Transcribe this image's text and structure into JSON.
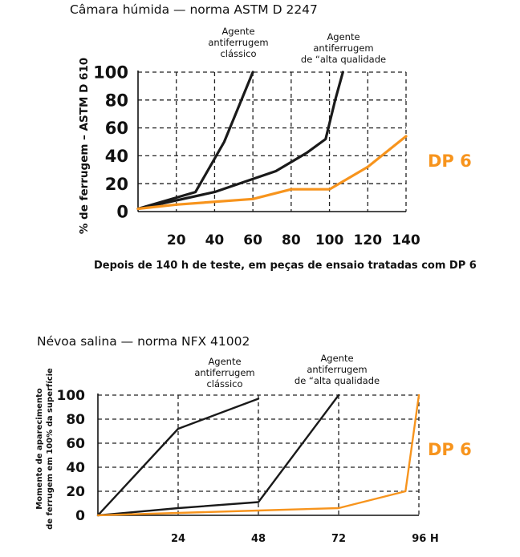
{
  "colors": {
    "dark": "#1a1a1a",
    "accent": "#F7941D",
    "grid": "#222222"
  },
  "chart_data": [
    {
      "type": "line",
      "title": "Câmara húmida — norma ASTM D 2247",
      "ylabel": "% de ferrugem – ASTM D 610",
      "note": "Depois de 140 h de teste, em peças de ensaio tratadas com DP 6",
      "x_ticks": [
        "20",
        "40",
        "60",
        "80",
        "100",
        "120",
        "140"
      ],
      "x_tick_values": [
        20,
        40,
        60,
        80,
        100,
        120,
        140
      ],
      "y_ticks": [
        "100",
        "80",
        "60",
        "40",
        "20",
        "0"
      ],
      "y_tick_values": [
        100,
        80,
        60,
        40,
        20,
        0
      ],
      "xlim": [
        0,
        140
      ],
      "ylim": [
        0,
        100
      ],
      "grid": true,
      "series": [
        {
          "name": "Agente antiferrugem clássico",
          "label_lines": [
            "Agente",
            "antiferrugem",
            "clássico"
          ],
          "color": "#1a1a1a",
          "x": [
            0,
            30,
            45,
            60
          ],
          "y": [
            2,
            14,
            50,
            100
          ]
        },
        {
          "name": "Agente antiferrugem de “alta qualidade",
          "label_lines": [
            "Agente",
            "antiferrugem",
            "de “alta qualidade"
          ],
          "color": "#1a1a1a",
          "x": [
            0,
            40,
            72,
            88,
            98,
            103,
            107
          ],
          "y": [
            2,
            14,
            29,
            42,
            52,
            80,
            100
          ]
        },
        {
          "name": "DP 6",
          "label_lines": [
            "DP 6"
          ],
          "color": "#F7941D",
          "x": [
            0,
            20,
            60,
            80,
            100,
            120,
            140
          ],
          "y": [
            2,
            5,
            9,
            16,
            16,
            32,
            54
          ]
        }
      ]
    },
    {
      "type": "line",
      "title": "Névoa salina — norma NFX 41002",
      "ylabel_lines": [
        "Momento de aparecimento",
        "de ferrugem em 100% da superfície"
      ],
      "x_ticks": [
        "24",
        "48",
        "72",
        "96 H"
      ],
      "x_tick_values": [
        24,
        48,
        72,
        96
      ],
      "y_ticks": [
        "100",
        "80",
        "60",
        "40",
        "20",
        "0"
      ],
      "y_tick_values": [
        100,
        80,
        60,
        40,
        20,
        0
      ],
      "xlim": [
        0,
        96
      ],
      "ylim": [
        0,
        100
      ],
      "grid": true,
      "series": [
        {
          "name": "Agente antiferrugem clássico",
          "label_lines": [
            "Agente",
            "antiferrugem",
            "clássico"
          ],
          "color": "#1a1a1a",
          "x": [
            0,
            24,
            48
          ],
          "y": [
            0,
            72,
            97
          ]
        },
        {
          "name": "Agente antiferrugem de “alta qualidade",
          "label_lines": [
            "Agente",
            "antiferrugem",
            "de “alta qualidade"
          ],
          "color": "#1a1a1a",
          "x": [
            0,
            24,
            48,
            72
          ],
          "y": [
            0,
            6,
            11,
            100
          ]
        },
        {
          "name": "DP 6",
          "label_lines": [
            "DP 6"
          ],
          "color": "#F7941D",
          "x": [
            0,
            24,
            48,
            72,
            92,
            96
          ],
          "y": [
            0,
            2,
            4,
            6,
            20,
            100
          ]
        }
      ]
    }
  ]
}
